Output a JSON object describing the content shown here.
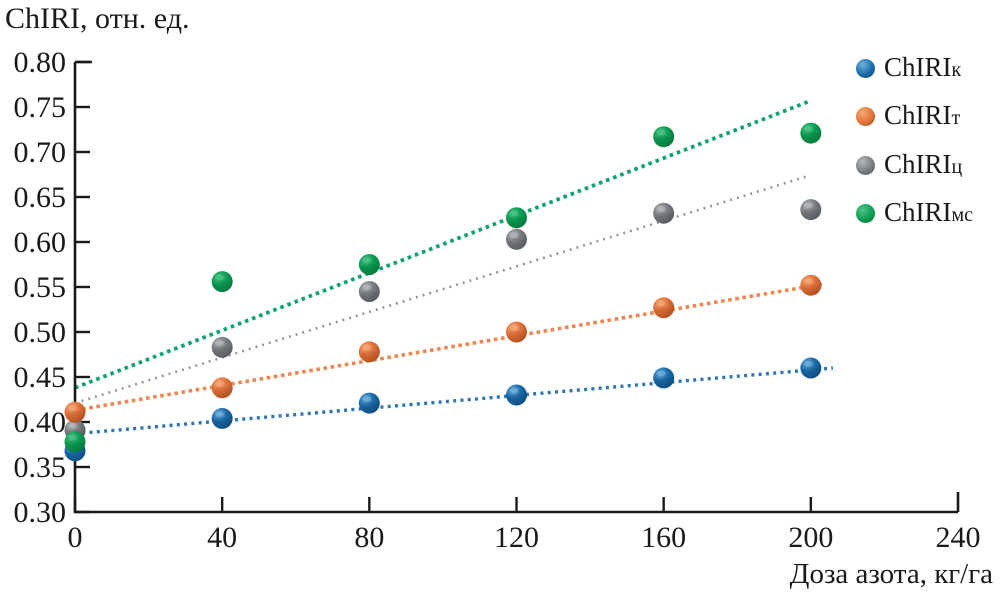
{
  "chart_data": {
    "type": "scatter",
    "title": "ChIRI, отн. ед.",
    "xlabel": "Доза азота, кг/га",
    "ylabel": "ChIRI, отн. ед.",
    "grid": false,
    "legend_position": "top-right",
    "xlim": [
      0,
      240
    ],
    "ylim": [
      0.3,
      0.8
    ],
    "x_ticks": [
      0,
      40,
      80,
      120,
      160,
      200,
      240
    ],
    "y_ticks": [
      0.8,
      0.75,
      0.7,
      0.65,
      0.6,
      0.55,
      0.5,
      0.45,
      0.4,
      0.35,
      0.3
    ],
    "x": [
      0,
      40,
      80,
      120,
      160,
      200
    ],
    "series": [
      {
        "name": "ChIRIк",
        "label_base": "ChIRI",
        "label_sub": "к",
        "marker_color": "#1B6BA9",
        "marker_highlight": "#6FB0DC",
        "marker_dark": "#0C4778",
        "line_color": "#2E75B5",
        "line_dash": "3 4.3",
        "line_width": 3.4,
        "values": [
          0.368,
          0.404,
          0.421,
          0.43,
          0.449,
          0.46
        ],
        "trend": {
          "x0": 0,
          "v0": 0.387,
          "x1": 206,
          "v1": 0.46
        }
      },
      {
        "name": "ChIRIт",
        "label_base": "ChIRI",
        "label_sub": "т",
        "marker_color": "#E0733C",
        "marker_highlight": "#F5A878",
        "marker_dark": "#A84A1B",
        "line_color": "#ED864F",
        "line_dash": "3.6 3.6",
        "line_width": 3.6,
        "values": [
          0.411,
          0.438,
          0.478,
          0.5,
          0.527,
          0.552
        ],
        "trend": {
          "x0": 0,
          "v0": 0.413,
          "x1": 203,
          "v1": 0.553
        }
      },
      {
        "name": "ChIRIц",
        "label_base": "ChIRI",
        "label_sub": "ц",
        "marker_color": "#797C80",
        "marker_highlight": "#B4B7BA",
        "marker_dark": "#515458",
        "line_color": "#8C8F93",
        "line_dash": "1.8 5.2",
        "line_width": 2.6,
        "values": [
          0.391,
          0.483,
          0.545,
          0.603,
          0.632,
          0.636
        ],
        "trend": {
          "x0": 0,
          "v0": 0.421,
          "x1": 199,
          "v1": 0.673
        }
      },
      {
        "name": "ChIRIмс",
        "label_base": "ChIRI",
        "label_sub": "мс",
        "marker_color": "#0B9D52",
        "marker_highlight": "#4FC189",
        "marker_dark": "#057239",
        "line_color": "#0FA279",
        "line_dash": "3.6 4",
        "line_width": 3.8,
        "values": [
          0.378,
          0.556,
          0.575,
          0.627,
          0.717,
          0.721
        ],
        "trend": {
          "x0": 0,
          "v0": 0.438,
          "x1": 200,
          "v1": 0.757
        }
      }
    ],
    "marker_draw_order": [
      0,
      2,
      1,
      3
    ],
    "axis_color": "#1a1a1a"
  }
}
